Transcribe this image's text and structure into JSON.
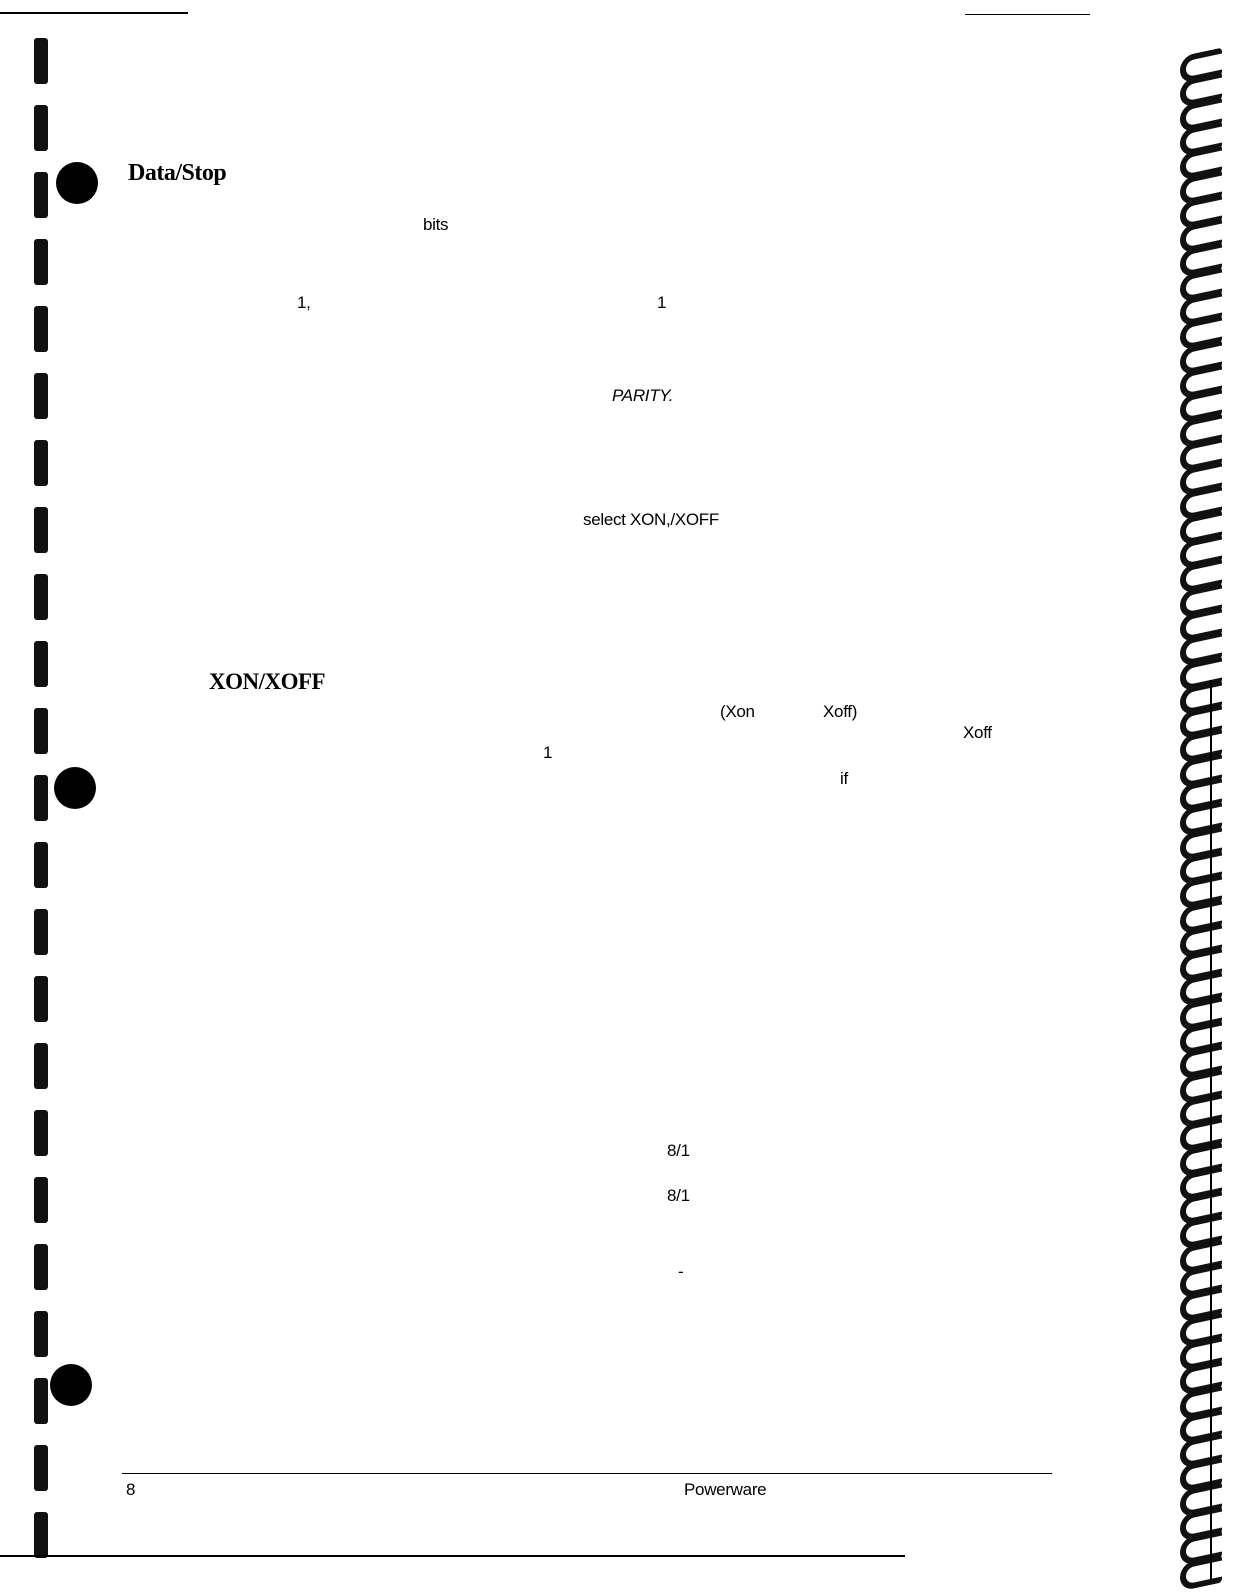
{
  "headings": {
    "data_stop": "Data/Stop",
    "xon_xoff": "XON/XOFF"
  },
  "fragments": {
    "bits": "bits",
    "one_comma": "1,",
    "one_a": "1",
    "parity": "PARITY.",
    "select_xon": "select  XON,/XOFF",
    "xon_paren": "(Xon",
    "xoff_paren": "Xoff)",
    "xoff": "Xoff",
    "one_b": "1",
    "if": "if",
    "setting_1": "8/1",
    "setting_2": "8/1",
    "dash": "-"
  },
  "footer": {
    "page_number": "8",
    "brand": "Powerware"
  }
}
